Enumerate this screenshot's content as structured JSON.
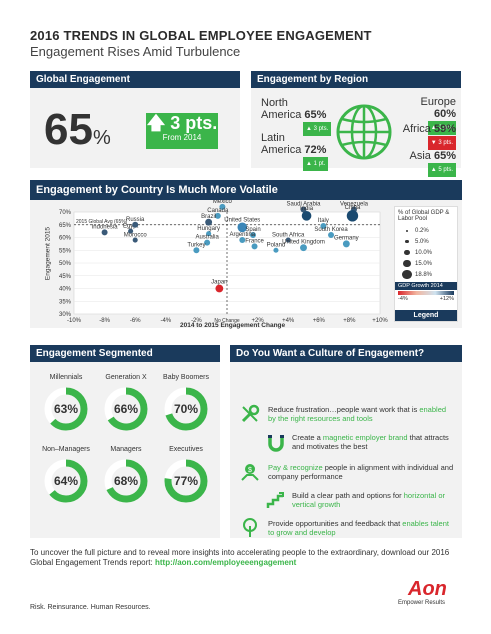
{
  "header": {
    "title": "2016 TRENDS IN GLOBAL EMPLOYEE ENGAGEMENT",
    "subtitle": "Engagement Rises Amid Turbulence"
  },
  "global": {
    "heading": "Global Engagement",
    "value": "65",
    "pct": "%",
    "change": "3 pts.",
    "from": "From 2014"
  },
  "region": {
    "heading": "Engagement by Region",
    "north_america": {
      "name1": "North",
      "name2": "America",
      "value": "65%",
      "change": "3 pts."
    },
    "latin_america": {
      "name1": "Latin",
      "name2": "America",
      "value": "72%",
      "change": "1 pt."
    },
    "europe": {
      "name": "Europe",
      "value": "60%",
      "change": "2 pts."
    },
    "africa": {
      "name": "Africa",
      "value": "59%",
      "change": "3 pts."
    },
    "asia": {
      "name": "Asia",
      "value": "65%",
      "change": "5 pts."
    }
  },
  "country": {
    "heading": "Engagement by Country Is Much More Volatile",
    "global_avg_label": "2015 Global Avg (65%)",
    "no_change_label": "No Change",
    "legend_heading1": "% of Global GDP &",
    "legend_heading2": "Labor Pool",
    "legend_sizes": [
      "0.2%",
      "5.0%",
      "10.0%",
      "15.0%",
      "18.8%"
    ],
    "gdp_growth_label": "GDP Growth 2014",
    "gdp_min": "-4%",
    "gdp_max": "+12%",
    "legend_title": "Legend"
  },
  "chart_data": {
    "type": "scatter",
    "xlabel": "2014 to 2015 Engagement Change",
    "ylabel": "Engagement 2015",
    "xlim": [
      -10,
      10
    ],
    "ylim": [
      30,
      70
    ],
    "x_ticks": [
      "-10%",
      "-8%",
      "-6%",
      "-4%",
      "-2%",
      "",
      "+2%",
      "+4%",
      "+6%",
      "+8%",
      "+10%"
    ],
    "y_ticks": [
      "70%",
      "65%",
      "60%",
      "55%",
      "50%",
      "45%",
      "40%",
      "35%",
      "30%"
    ],
    "points": [
      {
        "name": "Indonesia",
        "x": -8,
        "y": 62,
        "size": 2,
        "color": "#3a5a78"
      },
      {
        "name": "Egypt",
        "x": -6.3,
        "y": 62.5,
        "size": 1.5,
        "color": "#3a5a78"
      },
      {
        "name": "Russia",
        "x": -6,
        "y": 65,
        "size": 2,
        "color": "#3a5a78"
      },
      {
        "name": "Morocco",
        "x": -6,
        "y": 59,
        "size": 1.5,
        "color": "#3a5a78"
      },
      {
        "name": "Mexico",
        "x": -0.3,
        "y": 72,
        "size": 2,
        "color": "#4a9bc0"
      },
      {
        "name": "Canada",
        "x": -0.6,
        "y": 68.5,
        "size": 2,
        "color": "#4a9bc0"
      },
      {
        "name": "Brazil",
        "x": -1.2,
        "y": 66,
        "size": 2.5,
        "color": "#3a5a78"
      },
      {
        "name": "Hungary",
        "x": -1.2,
        "y": 61.5,
        "size": 1.5,
        "color": "#4a9bc0"
      },
      {
        "name": "Australia",
        "x": -1.3,
        "y": 58,
        "size": 2,
        "color": "#4a9bc0"
      },
      {
        "name": "Turkey",
        "x": -2,
        "y": 55,
        "size": 2,
        "color": "#4a9bc0"
      },
      {
        "name": "United States",
        "x": 1,
        "y": 64,
        "size": 4,
        "color": "#3a86b8"
      },
      {
        "name": "Spain",
        "x": 1.7,
        "y": 61,
        "size": 2,
        "color": "#4a9bc0"
      },
      {
        "name": "Argentina",
        "x": 1,
        "y": 59,
        "size": 2,
        "color": "#4a9bc0"
      },
      {
        "name": "France",
        "x": 1.8,
        "y": 56.5,
        "size": 2,
        "color": "#4a9bc0"
      },
      {
        "name": "Poland",
        "x": 3.2,
        "y": 55,
        "size": 1.5,
        "color": "#4a9bc0"
      },
      {
        "name": "South Africa",
        "x": 4,
        "y": 59,
        "size": 1.5,
        "color": "#3a5a78"
      },
      {
        "name": "United Kingdom",
        "x": 5,
        "y": 56,
        "size": 2.5,
        "color": "#4a9bc0"
      },
      {
        "name": "Saudi Arabia",
        "x": 5,
        "y": 71,
        "size": 2,
        "color": "#3a5a78"
      },
      {
        "name": "India",
        "x": 5.2,
        "y": 68.5,
        "size": 4,
        "color": "#1a4a70"
      },
      {
        "name": "Italy",
        "x": 6.3,
        "y": 64.5,
        "size": 2,
        "color": "#4a9bc0"
      },
      {
        "name": "Venezuela",
        "x": 8.3,
        "y": 71,
        "size": 2,
        "color": "#3a5a78"
      },
      {
        "name": "China",
        "x": 8.2,
        "y": 68.5,
        "size": 5,
        "color": "#1a4a70"
      },
      {
        "name": "South Korea",
        "x": 6.8,
        "y": 61,
        "size": 2,
        "color": "#4a9bc0"
      },
      {
        "name": "Germany",
        "x": 7.8,
        "y": 57.5,
        "size": 2.5,
        "color": "#4a9bc0"
      },
      {
        "name": "Japan",
        "x": -0.5,
        "y": 40,
        "size": 3,
        "color": "#d9262c"
      }
    ]
  },
  "segmented": {
    "heading": "Engagement Segmented",
    "items": [
      {
        "label": "Millennials",
        "value": "63%",
        "pct": 63
      },
      {
        "label": "Generation X",
        "value": "66%",
        "pct": 66
      },
      {
        "label": "Baby Boomers",
        "value": "70%",
        "pct": 70
      },
      {
        "label": "Non–Managers",
        "value": "64%",
        "pct": 64
      },
      {
        "label": "Managers",
        "value": "68%",
        "pct": 68
      },
      {
        "label": "Executives",
        "value": "77%",
        "pct": 77
      }
    ]
  },
  "culture": {
    "heading": "Do You Want a Culture of Engagement?",
    "items": [
      {
        "pre": "Reduce frustration…people want work that is",
        "hl": "enabled by the right resources and tools",
        "post": ""
      },
      {
        "pre": "Create a",
        "hl": "magnetic employer brand",
        "post": "that attracts and motivates the best"
      },
      {
        "pre": "",
        "hl": "Pay & recognize",
        "post": "people in alignment with individual and company performance"
      },
      {
        "pre": "Build a clear path and options for",
        "hl": "horizontal or vertical growth",
        "post": ""
      },
      {
        "pre": "Provide opportunities and feedback that",
        "hl": "enables talent to grow and develop",
        "post": ""
      }
    ]
  },
  "footer": {
    "line1": "To uncover the full picture and to reveal more insights into accelerating people to the extraordinary, download",
    "line2": "our 2016 Global Engagement Trends report:",
    "url": "http://aon.com/employeeengagement",
    "tagline": "Risk. Reinsurance. Human Resources.",
    "brand": "Aon",
    "brand_tag": "Empower Results"
  },
  "colors": {
    "navy": "#1a3a5c",
    "green": "#3bb54a",
    "red": "#d9262c"
  }
}
